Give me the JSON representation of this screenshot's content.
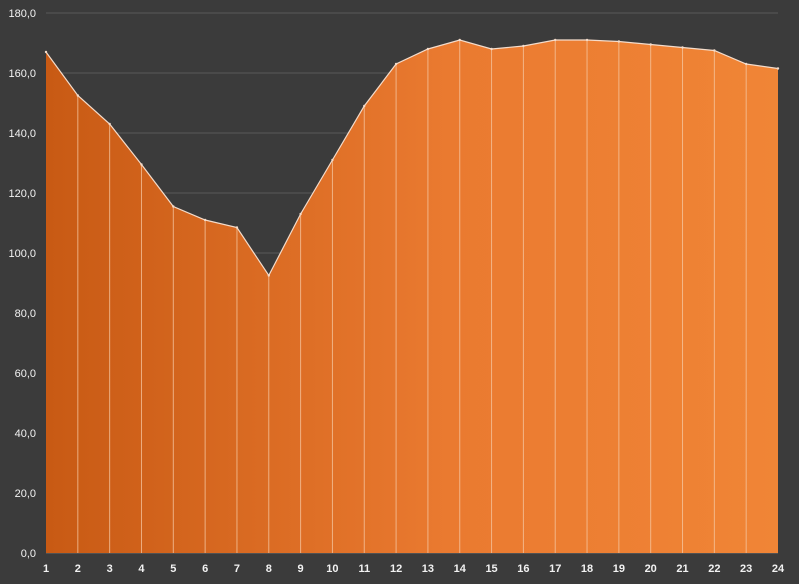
{
  "chart_data": {
    "type": "area",
    "categories": [
      "1",
      "2",
      "3",
      "4",
      "5",
      "6",
      "7",
      "8",
      "9",
      "10",
      "11",
      "12",
      "13",
      "14",
      "15",
      "16",
      "17",
      "18",
      "19",
      "20",
      "21",
      "22",
      "23",
      "24"
    ],
    "values": [
      167.0,
      152.5,
      143.0,
      129.5,
      115.5,
      111.0,
      108.5,
      92.5,
      113.0,
      131.0,
      149.0,
      163.0,
      168.0,
      171.0,
      168.0,
      169.0,
      171.0,
      171.0,
      170.5,
      169.5,
      168.5,
      167.5,
      163.0,
      161.5
    ],
    "title": "",
    "xlabel": "",
    "ylabel": "",
    "ylim": [
      0,
      180
    ],
    "yticks": [
      0,
      20,
      40,
      60,
      80,
      100,
      120,
      140,
      160,
      180
    ],
    "ytick_labels": [
      "0,0",
      "20,0",
      "40,0",
      "60,0",
      "80,0",
      "100,0",
      "120,0",
      "140,0",
      "160,0",
      "180,0"
    ],
    "grid": true,
    "legend": "none",
    "colors": {
      "background": "#3b3b3b",
      "gridline": "#5a5a5a",
      "fill_start": "#c85a14",
      "fill_end": "#f08536",
      "outline": "#f4dccb",
      "divider": "#f6c8a4",
      "tick_text": "#f2f2f2"
    }
  }
}
